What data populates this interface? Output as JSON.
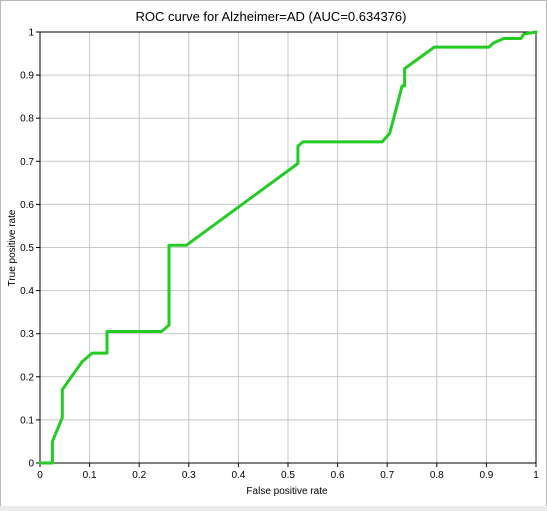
{
  "chart_data": {
    "type": "line",
    "title": "ROC curve for Alzheimer=AD (AUC=0.634376)",
    "xlabel": "False positive rate",
    "ylabel": "True positive rate",
    "xlim": [
      0,
      1
    ],
    "ylim": [
      0,
      1
    ],
    "x_ticks": [
      "0",
      "0.1",
      "0.2",
      "0.3",
      "0.4",
      "0.5",
      "0.6",
      "0.7",
      "0.8",
      "0.9",
      "1"
    ],
    "y_ticks": [
      "0",
      "0.1",
      "0.2",
      "0.3",
      "0.4",
      "0.5",
      "0.6",
      "0.7",
      "0.8",
      "0.9",
      "1"
    ],
    "grid": true,
    "line_color": "#22cc22",
    "series": [
      {
        "x": [
          0,
          0.025,
          0.025,
          0.045,
          0.045,
          0.06,
          0.085,
          0.105,
          0.135,
          0.135,
          0.245,
          0.26,
          0.26,
          0.295,
          0.52,
          0.52,
          0.53,
          0.69,
          0.705,
          0.72,
          0.73,
          0.735,
          0.735,
          0.795,
          0.905,
          0.915,
          0.935,
          0.97,
          0.975,
          1
        ],
        "y": [
          0,
          0,
          0.05,
          0.105,
          0.17,
          0.195,
          0.235,
          0.255,
          0.255,
          0.305,
          0.305,
          0.32,
          0.505,
          0.505,
          0.695,
          0.735,
          0.745,
          0.745,
          0.765,
          0.83,
          0.875,
          0.875,
          0.915,
          0.965,
          0.965,
          0.975,
          0.985,
          0.985,
          0.995,
          1
        ]
      }
    ]
  }
}
